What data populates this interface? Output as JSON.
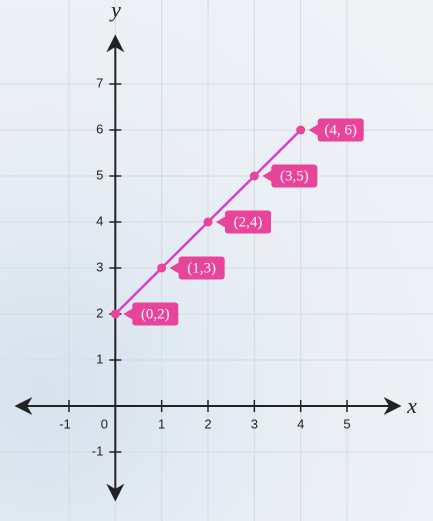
{
  "chart_data": {
    "type": "line",
    "x_label": "x",
    "y_label": "y",
    "x": [
      0,
      1,
      2,
      3,
      4
    ],
    "values": [
      2,
      3,
      4,
      5,
      6
    ],
    "value_labels": [
      "(0,2)",
      "(1,3)",
      "(2,4)",
      "(3,5)",
      "(4, 6)"
    ],
    "color": "#d63fd0",
    "point_color": "#e8449a",
    "xlim": [
      -2.1,
      6.1
    ],
    "ylim": [
      -2,
      8
    ],
    "xticks": [
      -1,
      0,
      1,
      2,
      3,
      4,
      5
    ],
    "yticks": [
      -1,
      1,
      2,
      3,
      4,
      5,
      6,
      7
    ],
    "grid": true
  }
}
